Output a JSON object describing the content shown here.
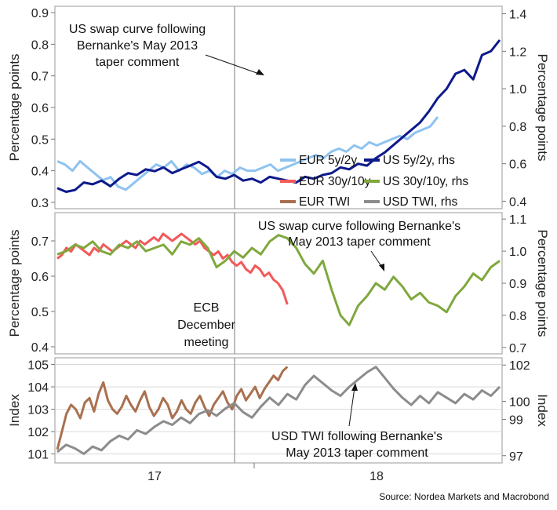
{
  "source": "Source: Nordea Markets and Macrobond",
  "x_axis": {
    "tick_labels": [
      "17",
      "18"
    ]
  },
  "colors": {
    "eur_5y2y": "#8ec3f0",
    "us_5y2y": "#0d1a8c",
    "eur_30y10y": "#f25a5a",
    "us_30y10y": "#7fa83d",
    "eur_twi": "#a9704f",
    "usd_twi": "#8c8c8c",
    "grid": "#d9d9d9",
    "ecb_line": "#a6a6a6"
  },
  "chart_data": [
    {
      "type": "line",
      "ylabel": "Percentage points",
      "ylabel_right": "Percentage points",
      "ylim": [
        0.28,
        0.92
      ],
      "ylim_right": [
        0.36,
        1.44
      ],
      "yticks": [
        "0.3",
        "0.4",
        "0.5",
        "0.6",
        "0.7",
        "0.8",
        "0.9"
      ],
      "yticks_right": [
        "0.4",
        "0.6",
        "0.8",
        "1.0",
        "1.2",
        "1.4"
      ],
      "legend": [
        "EUR 5y/2y",
        "US 5y/2y, rhs"
      ],
      "annotation": "US swap curve following Bernanke's May 2013 taper comment",
      "annotation_lines": [
        "US swap curve following",
        "Bernanke's May 2013",
        "taper comment"
      ],
      "series": [
        {
          "name": "EUR 5y/2y",
          "axis": "left",
          "x": [
            0.0,
            0.02,
            0.04,
            0.06,
            0.08,
            0.1,
            0.12,
            0.14,
            0.16,
            0.18,
            0.2,
            0.22,
            0.24,
            0.26,
            0.28,
            0.3,
            0.32,
            0.34,
            0.36,
            0.38,
            0.4,
            0.42,
            0.44,
            0.46,
            0.48,
            0.5,
            0.52,
            0.54,
            0.56,
            0.58,
            0.6,
            0.62,
            0.64,
            0.66,
            0.68,
            0.7,
            0.72,
            0.74,
            0.76,
            0.78,
            0.8,
            0.82,
            0.84,
            0.86,
            0.88,
            0.9,
            0.92,
            0.94,
            0.96,
            0.98,
            1.0
          ],
          "values": [
            0.43,
            0.42,
            0.4,
            0.43,
            0.41,
            0.39,
            0.37,
            0.38,
            0.35,
            0.34,
            0.36,
            0.38,
            0.4,
            0.42,
            0.41,
            0.43,
            0.4,
            0.42,
            0.41,
            0.39,
            0.4,
            0.38,
            0.4,
            0.39,
            0.41,
            0.4,
            0.4,
            0.41,
            0.42,
            0.4,
            0.41,
            0.42,
            0.43,
            0.44,
            0.45,
            0.44,
            0.46,
            0.47,
            0.46,
            0.48,
            0.47,
            0.49,
            0.48,
            0.49,
            0.5,
            0.51,
            0.5,
            0.52,
            0.53,
            0.54,
            0.57
          ]
        },
        {
          "name": "US 5y/2y, rhs",
          "axis": "right",
          "x": [
            0.0,
            0.02,
            0.04,
            0.06,
            0.08,
            0.1,
            0.12,
            0.14,
            0.16,
            0.18,
            0.2,
            0.22,
            0.24,
            0.26,
            0.28,
            0.3,
            0.32,
            0.34,
            0.36,
            0.38,
            0.4,
            0.42,
            0.44,
            0.46,
            0.48,
            0.5,
            0.52,
            0.54,
            0.56,
            0.58,
            0.6,
            0.62,
            0.64,
            0.66,
            0.68,
            0.7,
            0.72,
            0.74,
            0.76,
            0.78,
            0.8,
            0.82,
            0.84,
            0.86,
            0.88,
            0.9,
            0.92,
            0.94,
            0.96,
            0.98,
            1.0
          ],
          "values": [
            0.47,
            0.45,
            0.46,
            0.5,
            0.49,
            0.51,
            0.48,
            0.52,
            0.55,
            0.54,
            0.57,
            0.56,
            0.58,
            0.55,
            0.57,
            0.59,
            0.61,
            0.58,
            0.53,
            0.52,
            0.54,
            0.51,
            0.52,
            0.5,
            0.53,
            0.52,
            0.51,
            0.5,
            0.53,
            0.52,
            0.54,
            0.55,
            0.58,
            0.57,
            0.6,
            0.59,
            0.63,
            0.66,
            0.7,
            0.74,
            0.78,
            0.82,
            0.88,
            0.95,
            1.0,
            1.08,
            1.1,
            1.05,
            1.18,
            1.2,
            1.26
          ]
        }
      ]
    },
    {
      "type": "line",
      "ylabel": "Percentage points",
      "ylabel_right": "Percentage points",
      "ylim": [
        0.38,
        0.78
      ],
      "ylim_right": [
        0.68,
        1.12
      ],
      "yticks": [
        "0.4",
        "0.5",
        "0.6",
        "0.7"
      ],
      "yticks_right": [
        "0.7",
        "0.8",
        "0.9",
        "1.0",
        "1.1"
      ],
      "legend": [
        "EUR 30y/10y",
        "US 30y/10y, rhs"
      ],
      "annotation": "US swap curve following Bernanke's May 2013 taper comment",
      "annotation_lines": [
        "US swap curve following Bernanke's",
        "May 2013 taper comment"
      ],
      "ecb_label": [
        "ECB",
        "December",
        "meeting"
      ],
      "series": [
        {
          "name": "EUR 30y/10y",
          "axis": "left",
          "x": [
            0.0,
            0.02,
            0.04,
            0.06,
            0.08,
            0.1,
            0.12,
            0.14,
            0.16,
            0.18,
            0.2,
            0.22,
            0.24,
            0.26,
            0.28,
            0.3,
            0.32,
            0.34,
            0.36,
            0.38,
            0.4,
            0.42,
            0.44,
            0.46,
            0.48,
            0.5,
            0.52,
            0.54,
            0.56,
            0.58,
            0.6,
            0.62,
            0.64,
            0.66,
            0.68,
            0.7,
            0.72,
            0.74,
            0.76,
            0.78,
            0.8,
            0.82,
            0.84,
            0.86,
            0.88,
            0.9,
            0.92,
            0.94,
            0.96,
            0.98,
            1.0
          ],
          "values": [
            0.65,
            0.66,
            0.68,
            0.67,
            0.69,
            0.68,
            0.67,
            0.66,
            0.68,
            0.67,
            0.69,
            0.68,
            0.67,
            0.68,
            0.69,
            0.7,
            0.69,
            0.68,
            0.7,
            0.69,
            0.7,
            0.71,
            0.7,
            0.72,
            0.71,
            0.7,
            0.71,
            0.72,
            0.71,
            0.7,
            0.69,
            0.7,
            0.68,
            0.67,
            0.66,
            0.67,
            0.65,
            0.66,
            0.64,
            0.63,
            0.64,
            0.62,
            0.61,
            0.63,
            0.62,
            0.6,
            0.61,
            0.59,
            0.58,
            0.56,
            0.52
          ]
        },
        {
          "name": "US 30y/10y, rhs",
          "axis": "right",
          "x": [
            0.0,
            0.02,
            0.04,
            0.06,
            0.08,
            0.1,
            0.12,
            0.14,
            0.16,
            0.18,
            0.2,
            0.22,
            0.24,
            0.26,
            0.28,
            0.3,
            0.32,
            0.34,
            0.36,
            0.38,
            0.4,
            0.42,
            0.44,
            0.46,
            0.48,
            0.5,
            0.52,
            0.54,
            0.56,
            0.58,
            0.6,
            0.62,
            0.64,
            0.66,
            0.68,
            0.7,
            0.72,
            0.74,
            0.76,
            0.78,
            0.8,
            0.82,
            0.84,
            0.86,
            0.88,
            0.9,
            0.92,
            0.94,
            0.96,
            0.98,
            1.0
          ],
          "values": [
            0.99,
            1.0,
            1.02,
            1.01,
            1.03,
            1.0,
            0.99,
            1.02,
            1.01,
            1.03,
            1.0,
            1.01,
            1.02,
            0.99,
            1.03,
            1.02,
            1.04,
            1.01,
            0.95,
            0.97,
            1.0,
            0.98,
            1.01,
            0.99,
            1.03,
            1.05,
            1.04,
            1.01,
            0.96,
            0.93,
            0.97,
            0.88,
            0.8,
            0.77,
            0.83,
            0.86,
            0.9,
            0.88,
            0.92,
            0.89,
            0.85,
            0.87,
            0.84,
            0.83,
            0.81,
            0.86,
            0.89,
            0.93,
            0.91,
            0.95,
            0.97
          ]
        }
      ]
    },
    {
      "type": "line",
      "ylabel": "Index",
      "ylabel_right": "Index",
      "ylim": [
        100.6,
        105.3
      ],
      "ylim_right": [
        96.6,
        102.4
      ],
      "yticks": [
        "101",
        "102",
        "103",
        "104",
        "105"
      ],
      "yticks_right": [
        "97",
        "99",
        "100",
        "102"
      ],
      "legend": [
        "EUR TWI",
        "USD TWI, rhs"
      ],
      "annotation": "USD TWI following Bernanke's May 2013 taper comment",
      "annotation_lines": [
        "USD TWI following Bernanke's",
        "May 2013 taper comment"
      ],
      "series": [
        {
          "name": "EUR TWI",
          "axis": "left",
          "x": [
            0.0,
            0.02,
            0.04,
            0.06,
            0.08,
            0.1,
            0.12,
            0.14,
            0.16,
            0.18,
            0.2,
            0.22,
            0.24,
            0.26,
            0.28,
            0.3,
            0.32,
            0.34,
            0.36,
            0.38,
            0.4,
            0.42,
            0.44,
            0.46,
            0.48,
            0.5,
            0.52,
            0.54,
            0.56,
            0.58,
            0.6,
            0.62,
            0.64,
            0.66,
            0.68,
            0.7,
            0.72,
            0.74,
            0.76,
            0.78,
            0.8,
            0.82,
            0.84,
            0.86,
            0.88,
            0.9,
            0.92,
            0.94,
            0.96,
            0.98,
            1.0
          ],
          "values": [
            101.2,
            102.0,
            102.8,
            103.2,
            103.0,
            102.6,
            103.3,
            103.5,
            102.9,
            103.7,
            104.2,
            103.4,
            103.0,
            102.8,
            103.1,
            103.6,
            103.2,
            102.9,
            103.4,
            103.8,
            103.1,
            102.7,
            103.0,
            103.5,
            103.2,
            102.6,
            102.9,
            103.4,
            103.0,
            102.8,
            103.3,
            103.6,
            103.1,
            102.7,
            103.2,
            103.5,
            103.8,
            103.3,
            103.0,
            103.6,
            103.9,
            103.4,
            103.7,
            104.0,
            103.5,
            103.9,
            104.2,
            104.5,
            104.3,
            104.7,
            104.9
          ]
        },
        {
          "name": "USD TWI, rhs",
          "axis": "right",
          "x": [
            0.0,
            0.02,
            0.04,
            0.06,
            0.08,
            0.1,
            0.12,
            0.14,
            0.16,
            0.18,
            0.2,
            0.22,
            0.24,
            0.26,
            0.28,
            0.3,
            0.32,
            0.34,
            0.36,
            0.38,
            0.4,
            0.42,
            0.44,
            0.46,
            0.48,
            0.5,
            0.52,
            0.54,
            0.56,
            0.58,
            0.6,
            0.62,
            0.64,
            0.66,
            0.68,
            0.7,
            0.72,
            0.74,
            0.76,
            0.78,
            0.8,
            0.82,
            0.84,
            0.86,
            0.88,
            0.9,
            0.92,
            0.94,
            0.96,
            0.98,
            1.0
          ],
          "values": [
            97.2,
            97.6,
            97.4,
            97.1,
            97.5,
            97.3,
            97.8,
            98.1,
            97.9,
            98.4,
            98.2,
            98.6,
            98.9,
            98.7,
            99.1,
            98.8,
            99.3,
            99.5,
            99.2,
            99.6,
            99.9,
            99.4,
            99.1,
            99.7,
            100.2,
            99.8,
            100.4,
            100.1,
            100.9,
            101.4,
            101.0,
            100.6,
            100.3,
            100.8,
            101.2,
            101.6,
            101.9,
            101.3,
            100.7,
            100.2,
            99.8,
            100.3,
            99.9,
            100.5,
            100.2,
            99.9,
            100.4,
            100.1,
            100.6,
            100.3,
            100.8
          ]
        }
      ]
    }
  ]
}
